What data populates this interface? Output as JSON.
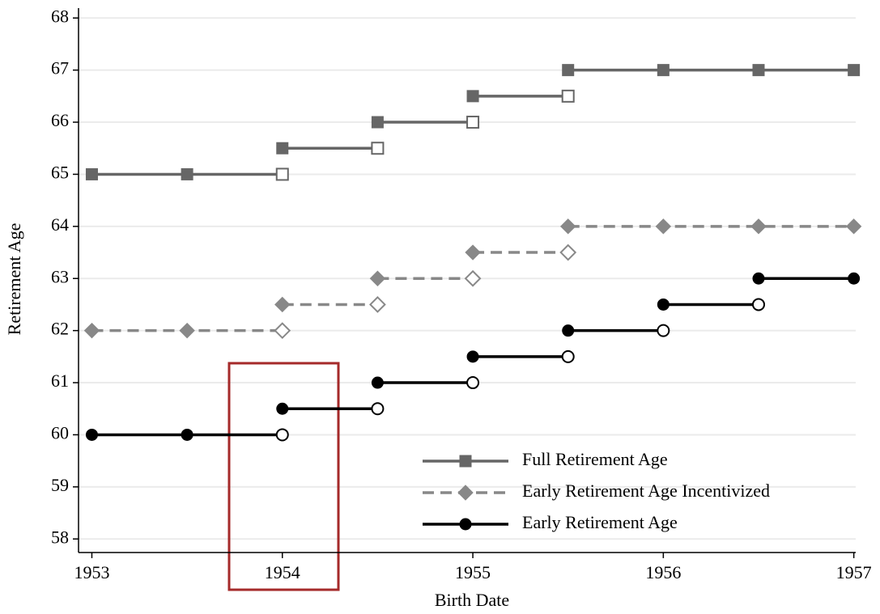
{
  "chart_data": {
    "type": "line",
    "xlabel": "Birth Date",
    "ylabel": "Retirement Age",
    "xlim": [
      1952.93,
      1957.01
    ],
    "ylim": [
      57.74,
      68.19
    ],
    "xticks": [
      1953,
      1954,
      1955,
      1956,
      1957
    ],
    "yticks": [
      58,
      59,
      60,
      61,
      62,
      63,
      64,
      65,
      66,
      67,
      68
    ],
    "grid": true,
    "legend": "lower right",
    "series": [
      {
        "name": "Full Retirement Age",
        "color": "#666666",
        "marker": "square",
        "dash": false,
        "x": [
          1953,
          1953.5,
          1954,
          null,
          1954,
          1954.5,
          null,
          1954.5,
          1955,
          null,
          1955,
          1955.5,
          null,
          1955.5,
          1956,
          1956.5,
          1957
        ],
        "values": [
          65,
          65,
          65,
          null,
          65.5,
          65.5,
          null,
          66,
          66,
          null,
          66.5,
          66.5,
          null,
          67,
          67,
          67,
          67
        ],
        "open": [
          false,
          false,
          true,
          null,
          false,
          true,
          null,
          false,
          true,
          null,
          false,
          true,
          null,
          false,
          false,
          false,
          false
        ]
      },
      {
        "name": "Early Retirement Age Incentivized",
        "color": "#888888",
        "marker": "diamond",
        "dash": true,
        "x": [
          1953,
          1953.5,
          1954,
          null,
          1954,
          1954.5,
          null,
          1954.5,
          1955,
          null,
          1955,
          1955.5,
          null,
          1955.5,
          1956,
          1956.5,
          1957
        ],
        "values": [
          62,
          62,
          62,
          null,
          62.5,
          62.5,
          null,
          63,
          63,
          null,
          63.5,
          63.5,
          null,
          64,
          64,
          64,
          64
        ],
        "open": [
          false,
          false,
          true,
          null,
          false,
          true,
          null,
          false,
          true,
          null,
          false,
          true,
          null,
          false,
          false,
          false,
          false
        ]
      },
      {
        "name": "Early Retirement Age",
        "color": "#000000",
        "marker": "circle",
        "dash": false,
        "x": [
          1953,
          1953.5,
          1954,
          null,
          1954,
          1954.5,
          null,
          1954.5,
          1955,
          null,
          1955,
          1955.5,
          null,
          1955.5,
          1956,
          null,
          1956,
          1956.5,
          null,
          1956.5,
          1957
        ],
        "values": [
          60,
          60,
          60,
          null,
          60.5,
          60.5,
          null,
          61,
          61,
          null,
          61.5,
          61.5,
          null,
          62,
          62,
          null,
          62.5,
          62.5,
          null,
          63,
          63
        ],
        "open": [
          false,
          false,
          true,
          null,
          false,
          true,
          null,
          false,
          true,
          null,
          false,
          true,
          null,
          false,
          true,
          null,
          false,
          true,
          null,
          false,
          false
        ]
      }
    ]
  }
}
